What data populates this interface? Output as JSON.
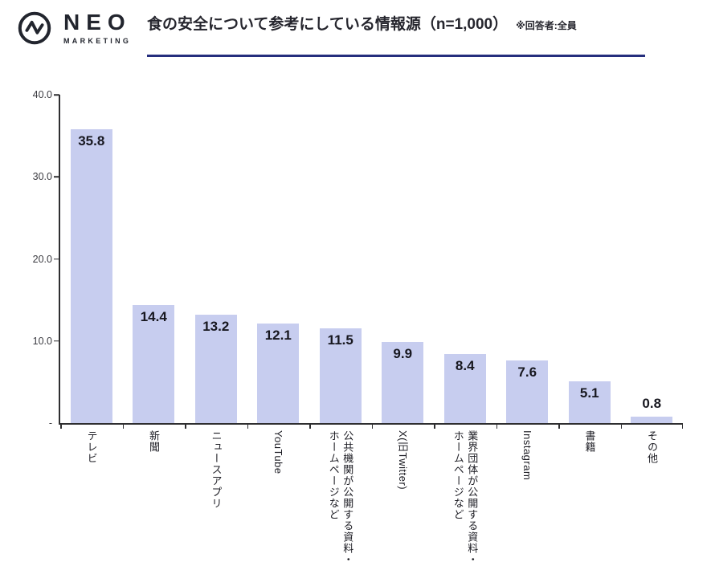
{
  "header": {
    "logo": {
      "brand": "NEO",
      "sub": "MARKETING"
    },
    "title": "食の安全について参考にしている情報源（n=1,000）",
    "note": "※回答者:全員"
  },
  "colors": {
    "bar": "#c7cdef",
    "title_underline": "#252e7d",
    "axis": "#2e2e30",
    "logo": "#22252e"
  },
  "chart_data": {
    "type": "bar",
    "title": "食の安全について参考にしている情報源（n=1,000）",
    "subtitle": "※回答者:全員",
    "categories": [
      "テレビ",
      "新聞",
      "ニュースアプリ",
      "YouTube",
      "公共機関が公開する資料・\nホームページなど",
      "X(旧Twitter)",
      "業界団体が公開する資料・\nホームページなど",
      "Instagram",
      "書籍",
      "その他"
    ],
    "values": [
      35.8,
      14.4,
      13.2,
      12.1,
      11.5,
      9.9,
      8.4,
      7.6,
      5.1,
      0.8
    ],
    "value_labels": [
      "35.8",
      "14.4",
      "13.2",
      "12.1",
      "11.5",
      "9.9",
      "8.4",
      "7.6",
      "5.1",
      "0.8"
    ],
    "xlabel": "",
    "ylabel": "",
    "ylim": [
      0,
      40
    ],
    "grid": false,
    "legend": false,
    "y_axis": {
      "min": 0,
      "max": 40,
      "ticks": [
        {
          "value": 40,
          "label": "40.0"
        },
        {
          "value": 30,
          "label": "30.0"
        },
        {
          "value": 20,
          "label": "20.0"
        },
        {
          "value": 10,
          "label": "10.0"
        },
        {
          "value": 0,
          "label": "-"
        }
      ]
    }
  }
}
